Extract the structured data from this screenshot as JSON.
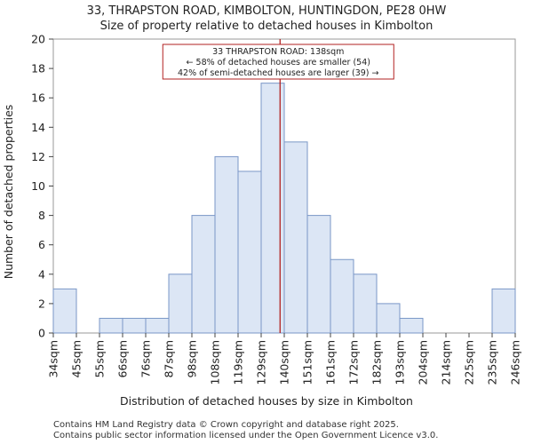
{
  "chart_data": {
    "type": "bar",
    "title": "33, THRAPSTON ROAD, KIMBOLTON, HUNTINGDON, PE28 0HW",
    "subtitle": "Size of property relative to detached houses in Kimbolton",
    "xlabel": "Distribution of detached houses by size in Kimbolton",
    "ylabel": "Number of detached properties",
    "bin_edges": [
      "34sqm",
      "45sqm",
      "55sqm",
      "66sqm",
      "76sqm",
      "87sqm",
      "98sqm",
      "108sqm",
      "119sqm",
      "129sqm",
      "140sqm",
      "151sqm",
      "161sqm",
      "172sqm",
      "182sqm",
      "193sqm",
      "204sqm",
      "214sqm",
      "225sqm",
      "235sqm",
      "246sqm"
    ],
    "values": [
      3,
      0,
      1,
      1,
      1,
      4,
      8,
      12,
      11,
      17,
      13,
      8,
      5,
      4,
      2,
      1,
      0,
      0,
      0,
      3
    ],
    "ylim": [
      0,
      20
    ],
    "yticks": [
      0,
      2,
      4,
      6,
      8,
      10,
      12,
      14,
      16,
      18,
      20
    ],
    "marker_value": 138,
    "annotation": [
      "33 THRAPSTON ROAD: 138sqm",
      "← 58% of detached houses are smaller (54)",
      "42% of semi-detached houses are larger (39) →"
    ],
    "colors": {
      "bar_fill": "#dce6f5",
      "bar_stroke": "#7a97c7",
      "marker": "#b22222",
      "annotation_border": "#b22222"
    }
  },
  "footer": [
    "Contains HM Land Registry data © Crown copyright and database right 2025.",
    "Contains public sector information licensed under the Open Government Licence v3.0."
  ]
}
